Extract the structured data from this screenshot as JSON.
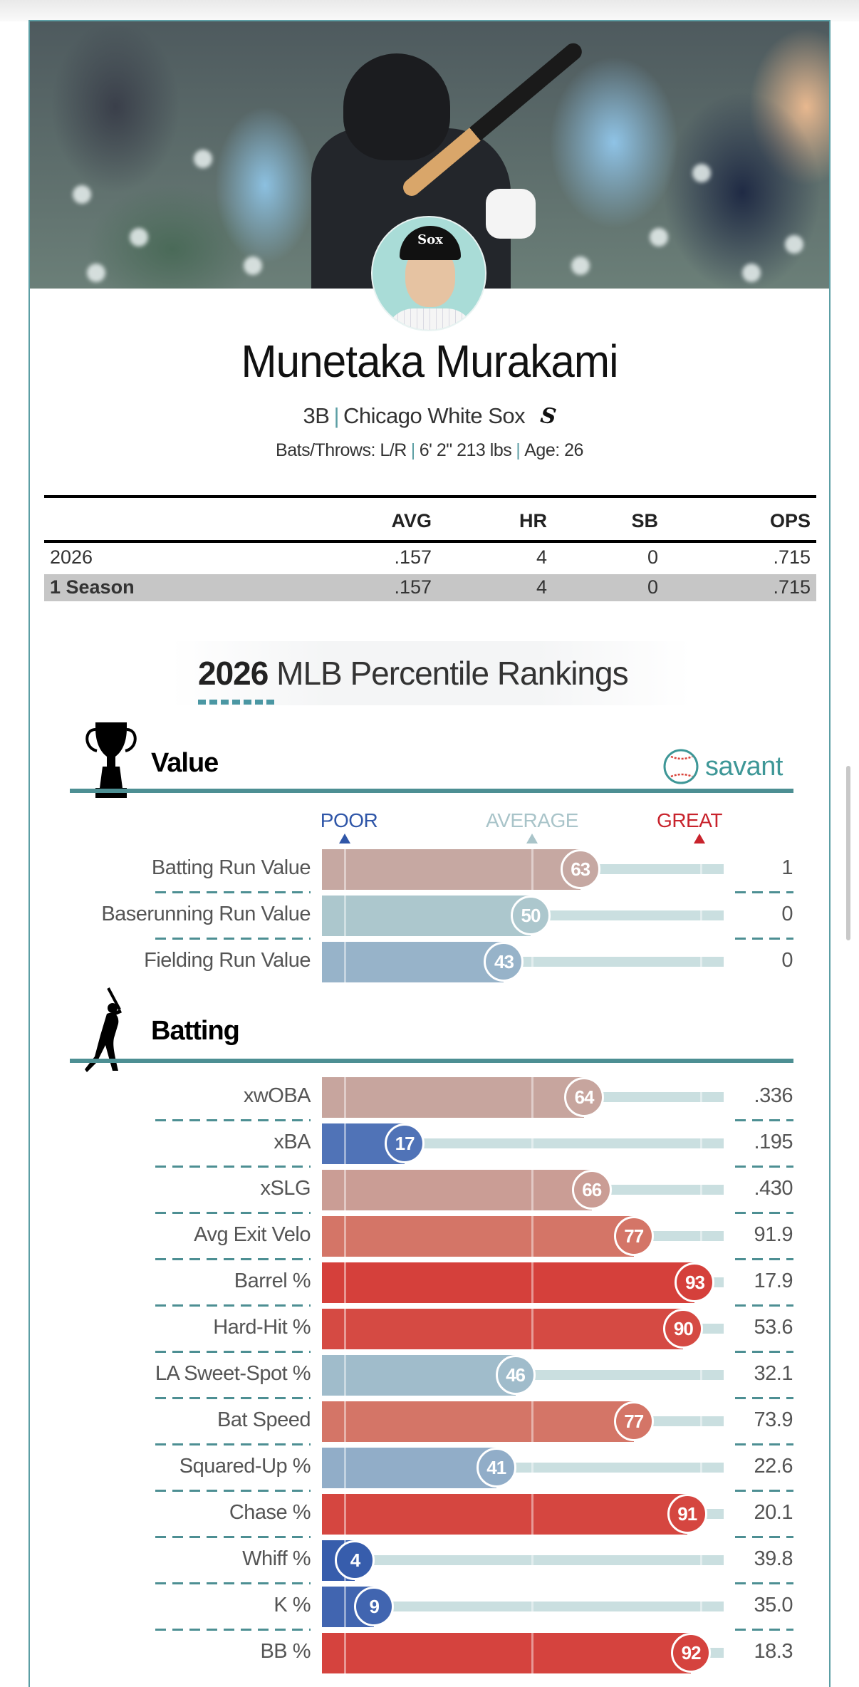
{
  "player": {
    "name": "Munetaka Murakami",
    "position": "3B",
    "team": "Chicago White Sox",
    "team_logo": "Sox",
    "bats_throws": "Bats/Throws: L/R",
    "height_weight": "6' 2\" 213 lbs",
    "age": "Age: 26"
  },
  "stats_table": {
    "headers": [
      "",
      "AVG",
      "HR",
      "SB",
      "OPS"
    ],
    "rows": [
      [
        "2026",
        ".157",
        "4",
        "0",
        ".715"
      ],
      [
        "1 Season",
        ".157",
        "4",
        "0",
        ".715"
      ]
    ]
  },
  "percentiles": {
    "title_year": "2026",
    "title_rest": "MLB Percentile Rankings",
    "logo_text": "savant",
    "scale": {
      "poor": "POOR",
      "average": "AVERAGE",
      "great": "GREAT"
    },
    "colors": {
      "poor": "#2f56a8",
      "average": "#a9c4c9",
      "great": "#c8232c",
      "accent": "#4d8f93"
    },
    "sections": [
      {
        "title": "Value",
        "icon": "trophy-icon",
        "metrics": [
          {
            "label": "Batting Run Value",
            "percentile": 63,
            "value": "1"
          },
          {
            "label": "Baserunning Run Value",
            "percentile": 50,
            "value": "0"
          },
          {
            "label": "Fielding Run Value",
            "percentile": 43,
            "value": "0"
          }
        ]
      },
      {
        "title": "Batting",
        "icon": "batter-icon",
        "metrics": [
          {
            "label": "xwOBA",
            "percentile": 64,
            "value": ".336"
          },
          {
            "label": "xBA",
            "percentile": 17,
            "value": ".195"
          },
          {
            "label": "xSLG",
            "percentile": 66,
            "value": ".430"
          },
          {
            "label": "Avg Exit Velo",
            "percentile": 77,
            "value": "91.9"
          },
          {
            "label": "Barrel %",
            "percentile": 93,
            "value": "17.9"
          },
          {
            "label": "Hard-Hit %",
            "percentile": 90,
            "value": "53.6"
          },
          {
            "label": "LA Sweet-Spot %",
            "percentile": 46,
            "value": "32.1"
          },
          {
            "label": "Bat Speed",
            "percentile": 77,
            "value": "73.9"
          },
          {
            "label": "Squared-Up %",
            "percentile": 41,
            "value": "22.6"
          },
          {
            "label": "Chase %",
            "percentile": 91,
            "value": "20.1"
          },
          {
            "label": "Whiff %",
            "percentile": 4,
            "value": "39.8"
          },
          {
            "label": "K %",
            "percentile": 9,
            "value": "35.0"
          },
          {
            "label": "BB %",
            "percentile": 92,
            "value": "18.3"
          }
        ]
      }
    ]
  }
}
